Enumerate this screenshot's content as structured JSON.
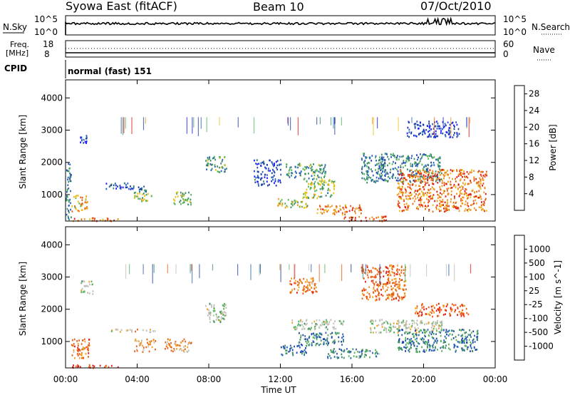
{
  "header": {
    "title": "Syowa East (fitACF)",
    "beam": "Beam 10",
    "date": "07/Oct/2010"
  },
  "top_panels": {
    "nsky_label": "N.Sky",
    "nsearch_label": "N.Search",
    "nsky_top_tick": "10^5",
    "nsky_bottom_tick": "10^0",
    "freq_label_line1": "Freq.",
    "freq_label_line2": "[MHz]",
    "freq_top_tick": "18",
    "freq_bottom_tick": "8",
    "nave_label": "Nave",
    "nave_top_tick": "60",
    "nave_bottom_tick": "0",
    "cpid_label": "CPID",
    "cpid_value": "normal (fast) 151"
  },
  "colors": {
    "power_scale": [
      "#1a1aff",
      "#1c3fa8",
      "#2a62b8",
      "#3a8c6a",
      "#56b45a",
      "#e8c21a",
      "#f0961a",
      "#e5621a",
      "#e01818"
    ],
    "velocity_scale": [
      "#1c3fa8",
      "#2a62b8",
      "#3a8c6a",
      "#56b45a",
      "#c0c0b8",
      "#c0c0b8",
      "#f0a020",
      "#e5621a",
      "#f05a14",
      "#e01818"
    ]
  },
  "chart_data": [
    {
      "type": "heatmap",
      "name": "power",
      "ylabel": "Slant Range [km]",
      "xlabel": "Time UT",
      "xlim": [
        0,
        24
      ],
      "ylim": [
        180,
        4560
      ],
      "x_ticks": [
        "00:00",
        "04:00",
        "08:00",
        "12:00",
        "16:00",
        "20:00",
        "00:00"
      ],
      "y_ticks": [
        1000,
        2000,
        3000,
        4000
      ],
      "colorbar": {
        "label": "Power [dB]",
        "ticks": [
          "4",
          "8",
          "12",
          "16",
          "20",
          "24",
          "28"
        ],
        "range": [
          0,
          30
        ]
      },
      "regions": [
        {
          "t": [
            0.0,
            0.3
          ],
          "r": [
            200,
            2000
          ],
          "level": 0.3
        },
        {
          "t": [
            0.3,
            1.2
          ],
          "r": [
            500,
            1000
          ],
          "level": 0.7
        },
        {
          "t": [
            0.3,
            3.0
          ],
          "r": [
            200,
            300
          ],
          "level": 0.8
        },
        {
          "t": [
            0.8,
            1.2
          ],
          "r": [
            2600,
            2900
          ],
          "level": 0.15
        },
        {
          "t": [
            2.0,
            3.5
          ],
          "r": [
            1200,
            1400
          ],
          "level": 0.2
        },
        {
          "t": [
            3.5,
            4.5
          ],
          "r": [
            1100,
            1300
          ],
          "level": 0.25
        },
        {
          "t": [
            3.8,
            4.8
          ],
          "r": [
            800,
            1100
          ],
          "level": 0.55
        },
        {
          "t": [
            6.0,
            7.0
          ],
          "r": [
            700,
            1100
          ],
          "level": 0.5
        },
        {
          "t": [
            7.8,
            9.0
          ],
          "r": [
            1700,
            2200
          ],
          "level": 0.45
        },
        {
          "t": [
            10.5,
            12.0
          ],
          "r": [
            1300,
            2100
          ],
          "level": 0.2
        },
        {
          "t": [
            11.8,
            13.5
          ],
          "r": [
            600,
            900
          ],
          "level": 0.55
        },
        {
          "t": [
            12.3,
            14.5
          ],
          "r": [
            1500,
            2000
          ],
          "level": 0.4
        },
        {
          "t": [
            13.2,
            15.0
          ],
          "r": [
            900,
            1500
          ],
          "level": 0.5
        },
        {
          "t": [
            14.0,
            16.5
          ],
          "r": [
            400,
            700
          ],
          "level": 0.75
        },
        {
          "t": [
            15.5,
            18.0
          ],
          "r": [
            200,
            350
          ],
          "level": 0.9
        },
        {
          "t": [
            16.5,
            21.0
          ],
          "r": [
            1400,
            2300
          ],
          "level": 0.35
        },
        {
          "t": [
            18.5,
            23.5
          ],
          "r": [
            500,
            1800
          ],
          "level": 0.8
        },
        {
          "t": [
            19.0,
            22.0
          ],
          "r": [
            2800,
            3300
          ],
          "level": 0.15
        }
      ]
    },
    {
      "type": "heatmap",
      "name": "velocity",
      "ylabel": "Slant Range [km]",
      "xlabel": "Time UT",
      "xlim": [
        0,
        24
      ],
      "ylim": [
        180,
        4560
      ],
      "x_ticks": [
        "00:00",
        "04:00",
        "08:00",
        "12:00",
        "16:00",
        "20:00",
        "00:00"
      ],
      "y_ticks": [
        1000,
        2000,
        3000,
        4000
      ],
      "colorbar": {
        "label": "Velocity [m s^-1]",
        "ticks": [
          "1000",
          "500",
          "100",
          "25",
          "-25",
          "-100",
          "-500",
          "-1000"
        ],
        "range": [
          -1200,
          1200
        ]
      },
      "regions": [
        {
          "t": [
            0.3,
            1.3
          ],
          "r": [
            500,
            1100
          ],
          "level": 0.75
        },
        {
          "t": [
            0.3,
            3.0
          ],
          "r": [
            200,
            300
          ],
          "level": 0.85
        },
        {
          "t": [
            0.8,
            1.5
          ],
          "r": [
            2500,
            2900
          ],
          "level": 0.45
        },
        {
          "t": [
            2.5,
            5.0
          ],
          "r": [
            1300,
            1400
          ],
          "level": 0.55
        },
        {
          "t": [
            3.8,
            5.0
          ],
          "r": [
            700,
            1100
          ],
          "level": 0.7
        },
        {
          "t": [
            5.5,
            7.0
          ],
          "r": [
            700,
            1100
          ],
          "level": 0.7
        },
        {
          "t": [
            7.8,
            9.0
          ],
          "r": [
            1600,
            2200
          ],
          "level": 0.45
        },
        {
          "t": [
            12.0,
            13.5
          ],
          "r": [
            600,
            900
          ],
          "level": 0.15
        },
        {
          "t": [
            12.5,
            14.0
          ],
          "r": [
            2500,
            3000
          ],
          "level": 0.75
        },
        {
          "t": [
            12.5,
            15.5
          ],
          "r": [
            1400,
            1700
          ],
          "level": 0.45
        },
        {
          "t": [
            13.0,
            15.5
          ],
          "r": [
            900,
            1300
          ],
          "level": 0.2
        },
        {
          "t": [
            14.5,
            17.5
          ],
          "r": [
            500,
            800
          ],
          "level": 0.25
        },
        {
          "t": [
            16.5,
            19.0
          ],
          "r": [
            2300,
            3400
          ],
          "level": 0.78
        },
        {
          "t": [
            17.0,
            21.0
          ],
          "r": [
            1300,
            1700
          ],
          "level": 0.48
        },
        {
          "t": [
            18.5,
            23.0
          ],
          "r": [
            700,
            1400
          ],
          "level": 0.2
        },
        {
          "t": [
            19.5,
            22.5
          ],
          "r": [
            1800,
            2200
          ],
          "level": 0.8
        }
      ]
    }
  ],
  "axes": {
    "time_label": "Time UT",
    "range_label": "Slant Range [km]"
  }
}
